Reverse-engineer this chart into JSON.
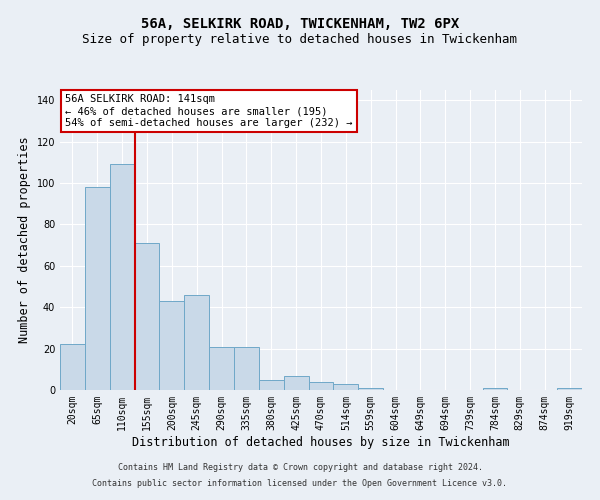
{
  "title1": "56A, SELKIRK ROAD, TWICKENHAM, TW2 6PX",
  "title2": "Size of property relative to detached houses in Twickenham",
  "xlabel": "Distribution of detached houses by size in Twickenham",
  "ylabel": "Number of detached properties",
  "categories": [
    "20sqm",
    "65sqm",
    "110sqm",
    "155sqm",
    "200sqm",
    "245sqm",
    "290sqm",
    "335sqm",
    "380sqm",
    "425sqm",
    "470sqm",
    "514sqm",
    "559sqm",
    "604sqm",
    "649sqm",
    "694sqm",
    "739sqm",
    "784sqm",
    "829sqm",
    "874sqm",
    "919sqm"
  ],
  "values": [
    22,
    98,
    109,
    71,
    43,
    46,
    21,
    21,
    5,
    7,
    4,
    3,
    1,
    0,
    0,
    0,
    0,
    1,
    0,
    0,
    1
  ],
  "bar_color": "#c9d9e8",
  "bar_edge_color": "#6fa8c8",
  "vline_x": 2.5,
  "vline_color": "#cc0000",
  "annotation_line1": "56A SELKIRK ROAD: 141sqm",
  "annotation_line2": "← 46% of detached houses are smaller (195)",
  "annotation_line3": "54% of semi-detached houses are larger (232) →",
  "annotation_box_color": "#cc0000",
  "annotation_bg": "#ffffff",
  "ylim": [
    0,
    145
  ],
  "yticks": [
    0,
    20,
    40,
    60,
    80,
    100,
    120,
    140
  ],
  "footer1": "Contains HM Land Registry data © Crown copyright and database right 2024.",
  "footer2": "Contains public sector information licensed under the Open Government Licence v3.0.",
  "bg_color": "#eaeff5",
  "plot_bg_color": "#eaeff5",
  "grid_color": "#ffffff",
  "title_fontsize": 10,
  "subtitle_fontsize": 9,
  "tick_fontsize": 7,
  "label_fontsize": 8.5,
  "footer_fontsize": 6,
  "ann_fontsize": 7.5
}
